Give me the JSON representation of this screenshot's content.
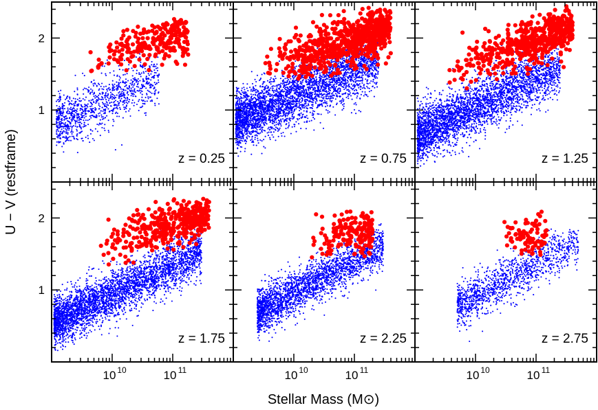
{
  "figure": {
    "xlabel": "Stellar Mass (M⊙)",
    "ylabel": "U − V (restframe)"
  },
  "colors": {
    "red_sequence": "#ff0000",
    "blue_cloud": "#0000ff",
    "frame": "#000000"
  },
  "chart_data": {
    "type": "scatter",
    "shared_axes": {
      "x_scale": "log",
      "x_unit": "Msun",
      "xlim": [
        1000000000.0,
        1000000000000.0
      ],
      "x_ticks": [
        10000000000.0,
        100000000000.0
      ],
      "x_tick_labels": [
        "10",
        "10"
      ],
      "x_tick_label_exponents": [
        "10",
        "11"
      ],
      "ylim": [
        0.0,
        2.5
      ],
      "y_ticks": [
        1,
        2
      ],
      "y_tick_labels": [
        "1",
        "2"
      ],
      "grid": false
    },
    "panels": [
      {
        "label": "z = 0.25",
        "red": {
          "xmin": 1300000000.0,
          "xmax": 180000000000.0,
          "ymin": 1.5,
          "ymax": 2.3,
          "ytop": 2.28,
          "slope": 0.22,
          "x0": 20000000000.0,
          "y0": 1.85,
          "n": 240
        },
        "blue": {
          "xmin": 1200000000.0,
          "xmax": 60000000000.0,
          "ymin": 0.5,
          "ymax": 1.9,
          "slope": 0.38,
          "x0": 5000000000.0,
          "y0": 1.05,
          "spread": 0.32,
          "n": 1100
        }
      },
      {
        "label": "z = 0.75",
        "red": {
          "xmin": 1200000000.0,
          "xmax": 400000000000.0,
          "ymin": 1.4,
          "ymax": 2.4,
          "ytop": 2.42,
          "slope": 0.26,
          "x0": 30000000000.0,
          "y0": 1.85,
          "n": 700
        },
        "blue": {
          "xmin": 1100000000.0,
          "xmax": 250000000000.0,
          "ymin": 0.45,
          "ymax": 2.1,
          "slope": 0.36,
          "x0": 8000000000.0,
          "y0": 1.15,
          "spread": 0.34,
          "n": 3800
        }
      },
      {
        "label": "z = 1.25",
        "red": {
          "xmin": 1200000000.0,
          "xmax": 400000000000.0,
          "ymin": 1.3,
          "ymax": 2.4,
          "ytop": 2.45,
          "slope": 0.28,
          "x0": 30000000000.0,
          "y0": 1.82,
          "n": 500
        },
        "blue": {
          "xmin": 1100000000.0,
          "xmax": 250000000000.0,
          "ymin": 0.3,
          "ymax": 2.0,
          "slope": 0.4,
          "x0": 8000000000.0,
          "y0": 1.0,
          "spread": 0.33,
          "n": 3600
        }
      },
      {
        "label": "z = 1.75",
        "red": {
          "xmin": 2500000000.0,
          "xmax": 400000000000.0,
          "ymin": 1.35,
          "ymax": 2.3,
          "ytop": 2.28,
          "slope": 0.28,
          "x0": 40000000000.0,
          "y0": 1.8,
          "n": 380
        },
        "blue": {
          "xmin": 1100000000.0,
          "xmax": 300000000000.0,
          "ymin": 0.2,
          "ymax": 2.0,
          "slope": 0.4,
          "x0": 6000000000.0,
          "y0": 0.85,
          "spread": 0.3,
          "n": 3800
        }
      },
      {
        "label": "z = 2.25",
        "red": {
          "xmin": 10000000000.0,
          "xmax": 200000000000.0,
          "ymin": 1.45,
          "ymax": 2.3,
          "ytop": 2.28,
          "slope": 0.1,
          "x0": 40000000000.0,
          "y0": 1.75,
          "n": 170
        },
        "blue": {
          "xmin": 2500000000.0,
          "xmax": 300000000000.0,
          "ymin": 0.3,
          "ymax": 1.95,
          "slope": 0.45,
          "x0": 10000000000.0,
          "y0": 0.95,
          "spread": 0.28,
          "n": 2600
        }
      },
      {
        "label": "z = 2.75",
        "red": {
          "xmin": 15000000000.0,
          "xmax": 150000000000.0,
          "ymin": 1.35,
          "ymax": 2.3,
          "ytop": 2.22,
          "slope": 0.1,
          "x0": 40000000000.0,
          "y0": 1.72,
          "n": 90
        },
        "blue": {
          "xmin": 5000000000.0,
          "xmax": 500000000000.0,
          "ymin": 0.25,
          "ymax": 1.9,
          "slope": 0.45,
          "x0": 15000000000.0,
          "y0": 1.0,
          "spread": 0.28,
          "n": 1300
        }
      }
    ]
  }
}
